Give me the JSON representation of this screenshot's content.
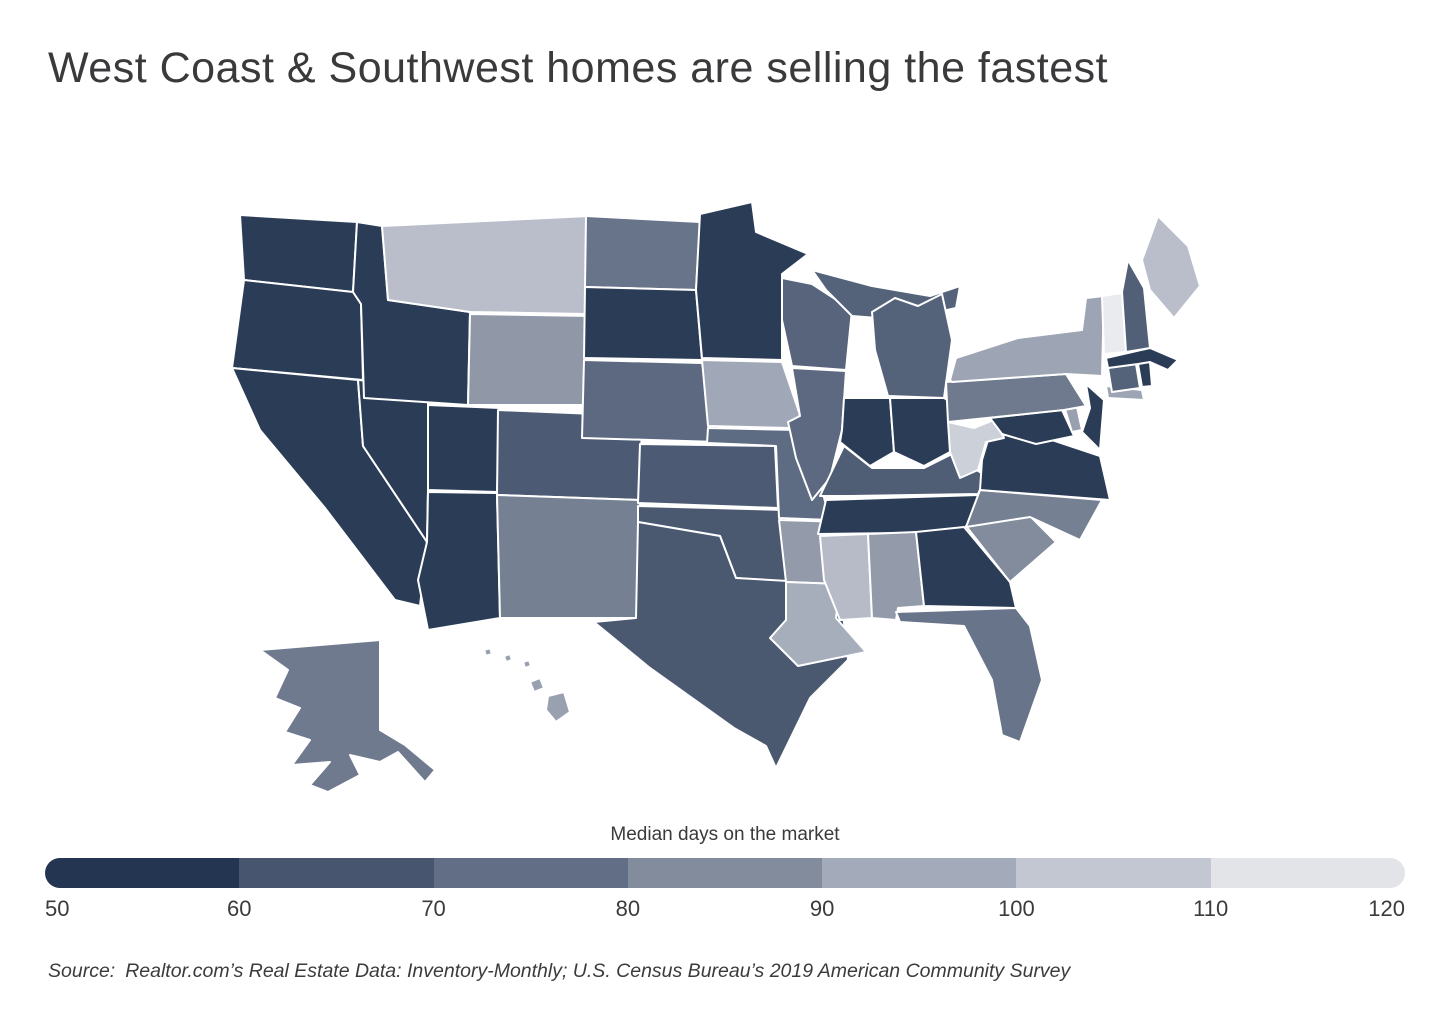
{
  "title": "West Coast & Southwest homes are selling the fastest",
  "legend": {
    "title": "Median days on the market",
    "ticks": [
      "50",
      "60",
      "70",
      "80",
      "90",
      "100",
      "110",
      "120"
    ],
    "segment_colors": [
      "#243551",
      "#47566e",
      "#616e85",
      "#838c9d",
      "#a3aab9",
      "#c3c7d1",
      "#e2e4e8"
    ]
  },
  "source": {
    "prefix": "Source:",
    "text": "Realtor.com’s Real Estate Data: Inventory-Monthly; U.S. Census Bureau’s 2019 American Community Survey"
  },
  "chart_data": {
    "type": "choropleth",
    "geography": "United States (states, with Alaska and Hawaii insets)",
    "metric": "Median days on the market",
    "unit": "days",
    "color_scale": {
      "min": 50,
      "max": 120,
      "stops": [
        {
          "v": 50,
          "c": "#243551"
        },
        {
          "v": 60,
          "c": "#47566e"
        },
        {
          "v": 70,
          "c": "#616e85"
        },
        {
          "v": 80,
          "c": "#838c9d"
        },
        {
          "v": 90,
          "c": "#a3aab9"
        },
        {
          "v": 100,
          "c": "#c3c7d1"
        },
        {
          "v": 110,
          "c": "#e2e4e8"
        },
        {
          "v": 120,
          "c": "#f0f1f4"
        }
      ]
    },
    "states": [
      {
        "id": "WA",
        "name": "Washington",
        "value": 52
      },
      {
        "id": "OR",
        "name": "Oregon",
        "value": 52
      },
      {
        "id": "CA",
        "name": "California",
        "value": 52
      },
      {
        "id": "NV",
        "name": "Nevada",
        "value": 52
      },
      {
        "id": "ID",
        "name": "Idaho",
        "value": 52
      },
      {
        "id": "UT",
        "name": "Utah",
        "value": 52
      },
      {
        "id": "AZ",
        "name": "Arizona",
        "value": 52
      },
      {
        "id": "MT",
        "name": "Montana",
        "value": 97
      },
      {
        "id": "WY",
        "name": "Wyoming",
        "value": 84
      },
      {
        "id": "CO",
        "name": "Colorado",
        "value": 62
      },
      {
        "id": "NM",
        "name": "New Mexico",
        "value": 76
      },
      {
        "id": "ND",
        "name": "North Dakota",
        "value": 72
      },
      {
        "id": "SD",
        "name": "South Dakota",
        "value": 52
      },
      {
        "id": "NE",
        "name": "Nebraska",
        "value": 68
      },
      {
        "id": "KS",
        "name": "Kansas",
        "value": 62
      },
      {
        "id": "OK",
        "name": "Oklahoma",
        "value": 61
      },
      {
        "id": "TX",
        "name": "Texas",
        "value": 61
      },
      {
        "id": "MN",
        "name": "Minnesota",
        "value": 52
      },
      {
        "id": "IA",
        "name": "Iowa",
        "value": 89
      },
      {
        "id": "MO",
        "name": "Missouri",
        "value": 69
      },
      {
        "id": "AR",
        "name": "Arkansas",
        "value": 85
      },
      {
        "id": "LA",
        "name": "Louisiana",
        "value": 91
      },
      {
        "id": "WI",
        "name": "Wisconsin",
        "value": 66
      },
      {
        "id": "IL",
        "name": "Illinois",
        "value": 68
      },
      {
        "id": "MI",
        "name": "Michigan",
        "value": 65
      },
      {
        "id": "IN",
        "name": "Indiana",
        "value": 52
      },
      {
        "id": "OH",
        "name": "Ohio",
        "value": 52
      },
      {
        "id": "KY",
        "name": "Kentucky",
        "value": 63
      },
      {
        "id": "TN",
        "name": "Tennessee",
        "value": 52
      },
      {
        "id": "MS",
        "name": "Mississippi",
        "value": 96
      },
      {
        "id": "AL",
        "name": "Alabama",
        "value": 85
      },
      {
        "id": "GA",
        "name": "Georgia",
        "value": 52
      },
      {
        "id": "FL",
        "name": "Florida",
        "value": 72
      },
      {
        "id": "SC",
        "name": "South Carolina",
        "value": 80
      },
      {
        "id": "NC",
        "name": "North Carolina",
        "value": 76
      },
      {
        "id": "VA",
        "name": "Virginia",
        "value": 52
      },
      {
        "id": "WV",
        "name": "West Virginia",
        "value": 103
      },
      {
        "id": "MD",
        "name": "Maryland",
        "value": 52
      },
      {
        "id": "DE",
        "name": "Delaware",
        "value": 87
      },
      {
        "id": "PA",
        "name": "Pennsylvania",
        "value": 74
      },
      {
        "id": "NJ",
        "name": "New Jersey",
        "value": 52
      },
      {
        "id": "NY",
        "name": "New York",
        "value": 88
      },
      {
        "id": "CT",
        "name": "Connecticut",
        "value": 65
      },
      {
        "id": "RI",
        "name": "Rhode Island",
        "value": 52
      },
      {
        "id": "MA",
        "name": "Massachusetts",
        "value": 52
      },
      {
        "id": "VT",
        "name": "Vermont",
        "value": 115
      },
      {
        "id": "NH",
        "name": "New Hampshire",
        "value": 64
      },
      {
        "id": "ME",
        "name": "Maine",
        "value": 97
      },
      {
        "id": "AK",
        "name": "Alaska",
        "value": 74
      },
      {
        "id": "HI",
        "name": "Hawaii",
        "value": 87
      }
    ]
  }
}
